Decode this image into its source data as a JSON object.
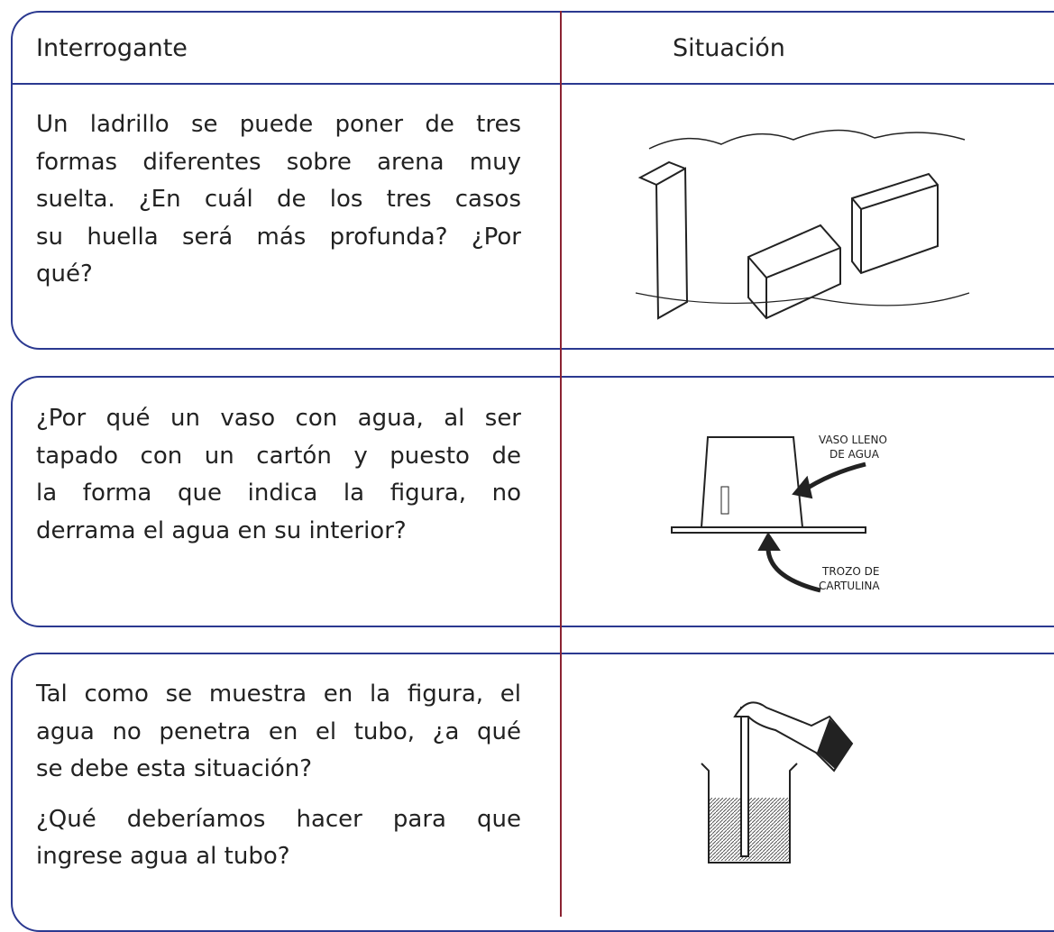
{
  "header": {
    "col1": "Interrogante",
    "col2": "Situación"
  },
  "rows": [
    {
      "paragraphs": [
        [
          "Un ladrillo se puede poner de tres",
          "formas diferentes sobre arena muy",
          "suelta. ¿En cuál de los tres casos",
          "su huella será más profunda? ¿Por",
          "qué?"
        ]
      ]
    },
    {
      "paragraphs": [
        [
          "¿Por qué un vaso con agua, al ser",
          "tapado con un cartón y puesto de",
          "la forma que indica la figura, no",
          "derrama el agua en su interior?"
        ]
      ],
      "figure_labels": [
        [
          "VASO LLENO",
          "DE AGUA"
        ],
        [
          "TROZO DE",
          "CARTULINA"
        ]
      ]
    },
    {
      "paragraphs": [
        [
          "Tal como se muestra en la figura, el",
          "agua no penetra en el tubo, ¿a qué",
          "se debe esta situación?"
        ],
        [
          "¿Qué deberíamos hacer para que",
          "ingrese agua al tubo?"
        ]
      ]
    }
  ]
}
